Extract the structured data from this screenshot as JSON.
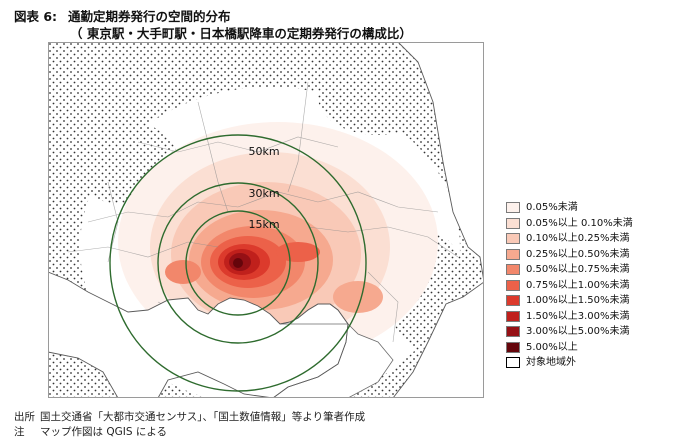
{
  "header": {
    "figure_no": "図表 6:",
    "title": "通勤定期券発行の空間的分布",
    "subtitle": "（ 東京駅・大手町駅・日本橋駅降車の定期券発行の構成比）"
  },
  "map": {
    "ring_labels": [
      "50km",
      "30km",
      "15km"
    ],
    "center_station_area": "東京駅・大手町駅・日本橋駅",
    "colors": {
      "land_outline": "#6b6b6b",
      "sea": "#ffffff",
      "ring": "#2e6b2e"
    }
  },
  "legend": {
    "items": [
      {
        "label": "0.05%未満",
        "color": "#fdf1ec"
      },
      {
        "label": "0.05%以上 0.10%未満",
        "color": "#fbdfd3"
      },
      {
        "label": "0.10%以上0.25%未満",
        "color": "#f9c9b7"
      },
      {
        "label": "0.25%以上0.50%未満",
        "color": "#f6a98f"
      },
      {
        "label": "0.50%以上0.75%未満",
        "color": "#f2876b"
      },
      {
        "label": "0.75%以上1.00%未満",
        "color": "#ec6149"
      },
      {
        "label": "1.00%以上1.50%未満",
        "color": "#dc3a2c"
      },
      {
        "label": "1.50%以上3.00%未満",
        "color": "#c0201c"
      },
      {
        "label": "3.00%以上5.00%未満",
        "color": "#961015"
      },
      {
        "label": "5.00%以上",
        "color": "#65050b"
      }
    ],
    "outside_label": "対象地域外"
  },
  "notes": {
    "source_label": "出所",
    "source_text": "国土交通省「大都市交通センサス」、「国土数値情報」等より筆者作成",
    "note_label": "注",
    "note_text": "マップ作図は QGIS による"
  }
}
